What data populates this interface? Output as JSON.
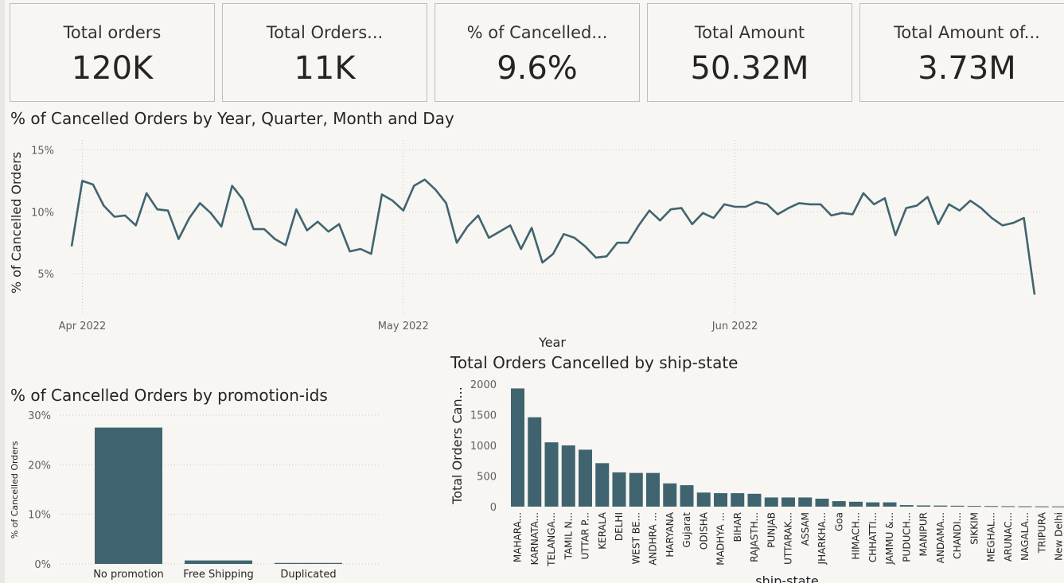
{
  "kpis": [
    {
      "label": "Total orders",
      "value": "120K"
    },
    {
      "label": "Total Orders...",
      "value": "11K"
    },
    {
      "label": "% of Cancelled...",
      "value": "9.6%"
    },
    {
      "label": "Total Amount",
      "value": "50.32M"
    },
    {
      "label": "Total Amount of...",
      "value": "3.73M"
    }
  ],
  "colors": {
    "series": "#40646f",
    "grid": "#c8c8c8",
    "axis_text": "#605e5c"
  },
  "chart_data": [
    {
      "type": "line",
      "title": "% of Cancelled Orders by Year, Quarter, Month and Day",
      "xlabel": "Year",
      "ylabel": "% of Cancelled Orders",
      "x_start": "2022-03-31",
      "x_end": "2022-06-29",
      "x_ticks": [
        {
          "date": "2022-04-01",
          "label": "Apr 2022"
        },
        {
          "date": "2022-05-01",
          "label": "May 2022"
        },
        {
          "date": "2022-06-01",
          "label": "Jun 2022"
        }
      ],
      "y_ticks": [
        {
          "value": 5,
          "label": "5%"
        },
        {
          "value": 10,
          "label": "10%"
        },
        {
          "value": 15,
          "label": "15%"
        }
      ],
      "ylim": [
        2.5,
        15.8
      ],
      "grid": true,
      "values": [
        7.2,
        12.5,
        12.2,
        10.5,
        9.6,
        9.7,
        8.9,
        11.5,
        10.2,
        10.1,
        7.8,
        9.5,
        10.7,
        9.9,
        8.8,
        12.1,
        11.0,
        8.6,
        8.6,
        7.8,
        7.3,
        10.2,
        8.5,
        9.2,
        8.4,
        9.0,
        6.8,
        7.0,
        6.6,
        11.4,
        10.9,
        10.1,
        12.1,
        12.6,
        11.8,
        10.7,
        7.5,
        8.8,
        9.7,
        7.9,
        8.4,
        8.9,
        7.0,
        8.7,
        5.9,
        6.6,
        8.2,
        7.9,
        7.2,
        6.3,
        6.4,
        7.5,
        7.5,
        8.9,
        10.1,
        9.3,
        10.2,
        10.3,
        9.0,
        9.9,
        9.5,
        10.6,
        10.4,
        10.4,
        10.8,
        10.6,
        9.8,
        10.3,
        10.7,
        10.6,
        10.6,
        9.7,
        9.9,
        9.8,
        11.5,
        10.6,
        11.1,
        8.1,
        10.3,
        10.5,
        11.2,
        9.0,
        10.6,
        10.1,
        10.9,
        10.3,
        9.5,
        8.9,
        9.1,
        9.5,
        3.3
      ]
    },
    {
      "type": "bar",
      "title": "% of Cancelled Orders by promotion-ids",
      "xlabel": "",
      "ylabel": "% of Cancelled Orders",
      "categories": [
        "No promotion",
        "Free Shipping",
        "Duplicated"
      ],
      "values": [
        27.5,
        0.7,
        0.2
      ],
      "y_ticks": [
        {
          "value": 0,
          "label": "0%"
        },
        {
          "value": 10,
          "label": "10%"
        },
        {
          "value": 20,
          "label": "20%"
        },
        {
          "value": 30,
          "label": "30%"
        }
      ],
      "ylim": [
        0,
        30
      ],
      "grid": true
    },
    {
      "type": "bar",
      "title": "Total Orders Cancelled by ship-state",
      "xlabel": "ship-state",
      "ylabel": "Total Orders Can...",
      "categories": [
        "MAHARA...",
        "KARNATA...",
        "TELANGA...",
        "TAMIL N...",
        "UTTAR P...",
        "KERALA",
        "DELHI",
        "WEST BE...",
        "ANDHRA ...",
        "HARYANA",
        "Gujarat",
        "ODISHA",
        "MADHYA ...",
        "BIHAR",
        "RAJASTH...",
        "PUNJAB",
        "UTTARAK...",
        "ASSAM",
        "JHARKHA...",
        "Goa",
        "HIMACH...",
        "CHHATTI...",
        "JAMMU &...",
        "PUDUCH...",
        "MANIPUR",
        "ANDAMA...",
        "CHANDI...",
        "SIKKIM",
        "MEGHAL...",
        "ARUNAC...",
        "NAGALA...",
        "TRIPURA",
        "New Delhi"
      ],
      "values": [
        1930,
        1460,
        1050,
        1000,
        930,
        710,
        560,
        550,
        550,
        380,
        350,
        230,
        220,
        220,
        210,
        150,
        150,
        150,
        130,
        90,
        80,
        70,
        70,
        25,
        20,
        18,
        15,
        12,
        10,
        8,
        6,
        5,
        4
      ],
      "y_ticks": [
        {
          "value": 0,
          "label": "0"
        },
        {
          "value": 500,
          "label": "500"
        },
        {
          "value": 1000,
          "label": "1000"
        },
        {
          "value": 1500,
          "label": "1500"
        },
        {
          "value": 2000,
          "label": "2000"
        }
      ],
      "ylim": [
        0,
        2000
      ],
      "grid": false
    }
  ]
}
